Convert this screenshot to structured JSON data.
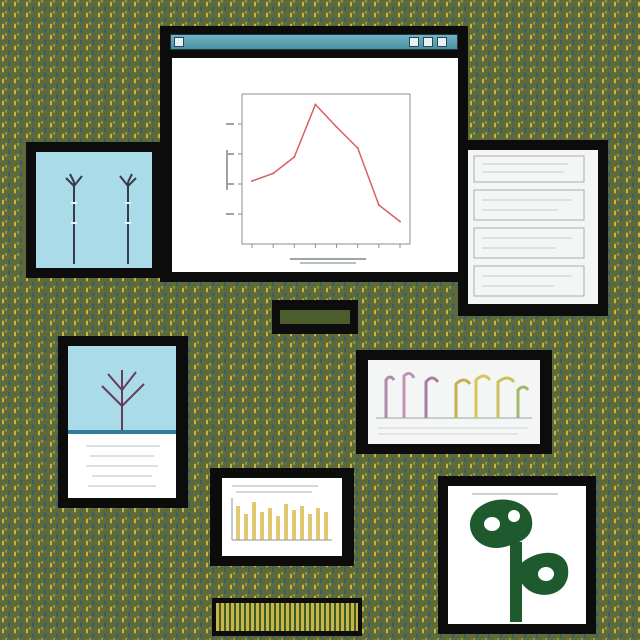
{
  "main_window": {
    "title": "",
    "chart": {
      "title": ""
    }
  },
  "chart_data": {
    "type": "line",
    "title": "",
    "xlabel": "",
    "ylabel": "",
    "x": [
      0,
      1,
      2,
      3,
      4,
      5,
      6,
      7
    ],
    "series": [
      {
        "values": [
          0.42,
          0.47,
          0.58,
          0.93,
          0.78,
          0.64,
          0.26,
          0.15
        ],
        "color": "#d86060"
      }
    ],
    "ylim": [
      0,
      1
    ],
    "grid": false
  },
  "colors": {
    "background_dots_a": "#c9b445",
    "background_dots_b": "#2f5f7a",
    "panel_frame": "#0c0c0c",
    "plant_cyan": "#a9dbe9",
    "leaf_green": "#1f5a2e"
  },
  "icons": {
    "plant_pair": "plant-seedling-pair-icon",
    "branch": "branch-icon",
    "leaf": "leaf-logo-icon"
  }
}
